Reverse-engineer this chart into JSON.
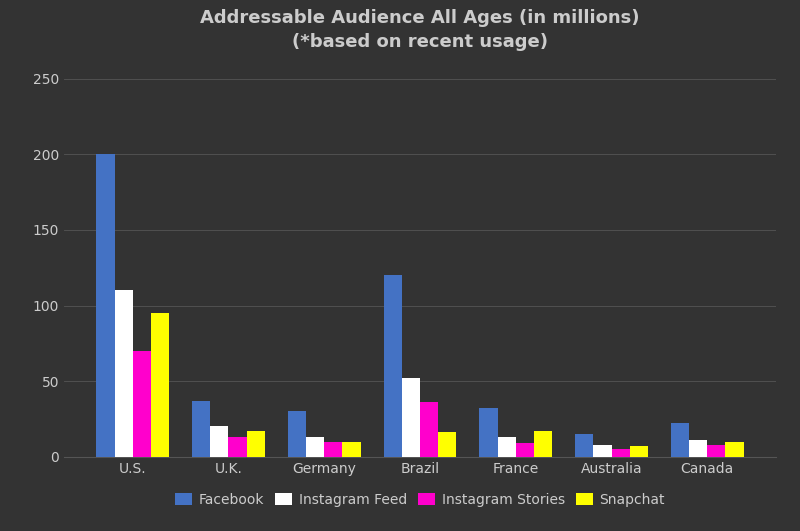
{
  "title": "Addressable Audience All Ages (in millions)\n(*based on recent usage)",
  "categories": [
    "U.S.",
    "U.K.",
    "Germany",
    "Brazil",
    "France",
    "Australia",
    "Canada"
  ],
  "series": {
    "Facebook": [
      200,
      37,
      30,
      120,
      32,
      15,
      22
    ],
    "Instagram Feed": [
      110,
      20,
      13,
      52,
      13,
      8,
      11
    ],
    "Instagram Stories": [
      70,
      13,
      10,
      36,
      9,
      5,
      8
    ],
    "Snapchat": [
      95,
      17,
      10,
      16,
      17,
      7,
      10
    ]
  },
  "colors": {
    "Facebook": "#4472C4",
    "Instagram Feed": "#FFFFFF",
    "Instagram Stories": "#FF00CC",
    "Snapchat": "#FFFF00"
  },
  "ylim": [
    0,
    260
  ],
  "yticks": [
    0,
    50,
    100,
    150,
    200,
    250
  ],
  "background_color": "#333333",
  "axes_facecolor": "#333333",
  "grid_color": "#555555",
  "text_color": "#cccccc",
  "title_fontsize": 13,
  "tick_fontsize": 10,
  "legend_fontsize": 10,
  "bar_width": 0.19
}
